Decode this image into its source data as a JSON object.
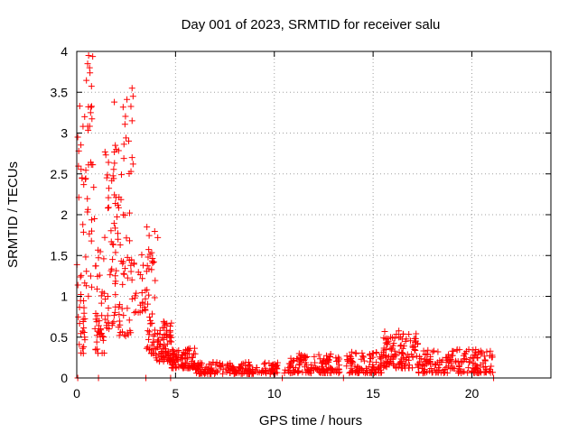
{
  "chart_data": {
    "type": "scatter",
    "title": "Day 001 of 2023, SRMTID for receiver salu",
    "xlabel": "GPS time / hours",
    "ylabel": "SRMTID / TECUs",
    "xlim": [
      0,
      24
    ],
    "ylim": [
      0,
      4
    ],
    "x_ticks": [
      0,
      5,
      10,
      15,
      20
    ],
    "y_ticks": [
      0,
      0.5,
      1,
      1.5,
      2,
      2.5,
      3,
      3.5,
      4
    ],
    "x_tick_labels": [
      "0",
      "5",
      "10",
      "15",
      "20"
    ],
    "y_tick_labels": [
      "0",
      "0.5",
      "1",
      "1.5",
      "2",
      "2.5",
      "3",
      "3.5",
      "4"
    ],
    "grid": true,
    "marker": "+",
    "series_color": "#ff0000",
    "data_gaps_at_zero": [
      0.05,
      1.1,
      3.5,
      4.75,
      10.4,
      13.5,
      21.1
    ],
    "segments": [
      {
        "x_start": 0.0,
        "x_end": 0.5,
        "y_low": 0.3,
        "y_high": 3.1,
        "n": 40
      },
      {
        "x_start": 0.45,
        "x_end": 0.9,
        "y_low": 1.0,
        "y_high": 3.95,
        "n": 30
      },
      {
        "x_start": 0.9,
        "x_end": 1.4,
        "y_low": 0.3,
        "y_high": 1.6,
        "n": 40
      },
      {
        "x_start": 1.4,
        "x_end": 2.1,
        "y_low": 0.6,
        "y_high": 2.8,
        "n": 55
      },
      {
        "x_start": 2.1,
        "x_end": 2.8,
        "y_low": 0.5,
        "y_high": 3.5,
        "n": 55
      },
      {
        "x_start": 2.8,
        "x_end": 3.5,
        "y_low": 0.8,
        "y_high": 1.6,
        "n": 25
      },
      {
        "x_start": 3.5,
        "x_end": 4.0,
        "y_low": 0.3,
        "y_high": 1.8,
        "n": 45
      },
      {
        "x_start": 4.0,
        "x_end": 4.8,
        "y_low": 0.2,
        "y_high": 0.7,
        "n": 80
      },
      {
        "x_start": 4.8,
        "x_end": 6.0,
        "y_low": 0.12,
        "y_high": 0.38,
        "n": 90
      },
      {
        "x_start": 6.0,
        "x_end": 10.3,
        "y_low": 0.05,
        "y_high": 0.2,
        "n": 180
      },
      {
        "x_start": 10.5,
        "x_end": 13.3,
        "y_low": 0.06,
        "y_high": 0.3,
        "n": 130
      },
      {
        "x_start": 13.6,
        "x_end": 15.5,
        "y_low": 0.06,
        "y_high": 0.32,
        "n": 90
      },
      {
        "x_start": 15.5,
        "x_end": 17.3,
        "y_low": 0.12,
        "y_high": 0.58,
        "n": 120
      },
      {
        "x_start": 17.3,
        "x_end": 21.1,
        "y_low": 0.06,
        "y_high": 0.35,
        "n": 170
      }
    ],
    "notable_points": [
      {
        "x": 0.6,
        "y": 3.95
      },
      {
        "x": 0.55,
        "y": 3.85
      },
      {
        "x": 0.65,
        "y": 3.8
      },
      {
        "x": 0.15,
        "y": 3.33
      },
      {
        "x": 0.4,
        "y": 3.2
      },
      {
        "x": 0.7,
        "y": 3.25
      },
      {
        "x": 1.9,
        "y": 3.38
      },
      {
        "x": 2.8,
        "y": 3.55
      },
      {
        "x": 2.85,
        "y": 3.45
      },
      {
        "x": 2.8,
        "y": 3.15
      },
      {
        "x": 1.95,
        "y": 2.85
      },
      {
        "x": 2.0,
        "y": 2.8
      },
      {
        "x": 2.8,
        "y": 2.7
      },
      {
        "x": 2.85,
        "y": 2.62
      },
      {
        "x": 0.05,
        "y": 2.95
      },
      {
        "x": 0.1,
        "y": 2.78
      },
      {
        "x": 3.55,
        "y": 1.85
      },
      {
        "x": 4.1,
        "y": 1.72
      }
    ]
  }
}
